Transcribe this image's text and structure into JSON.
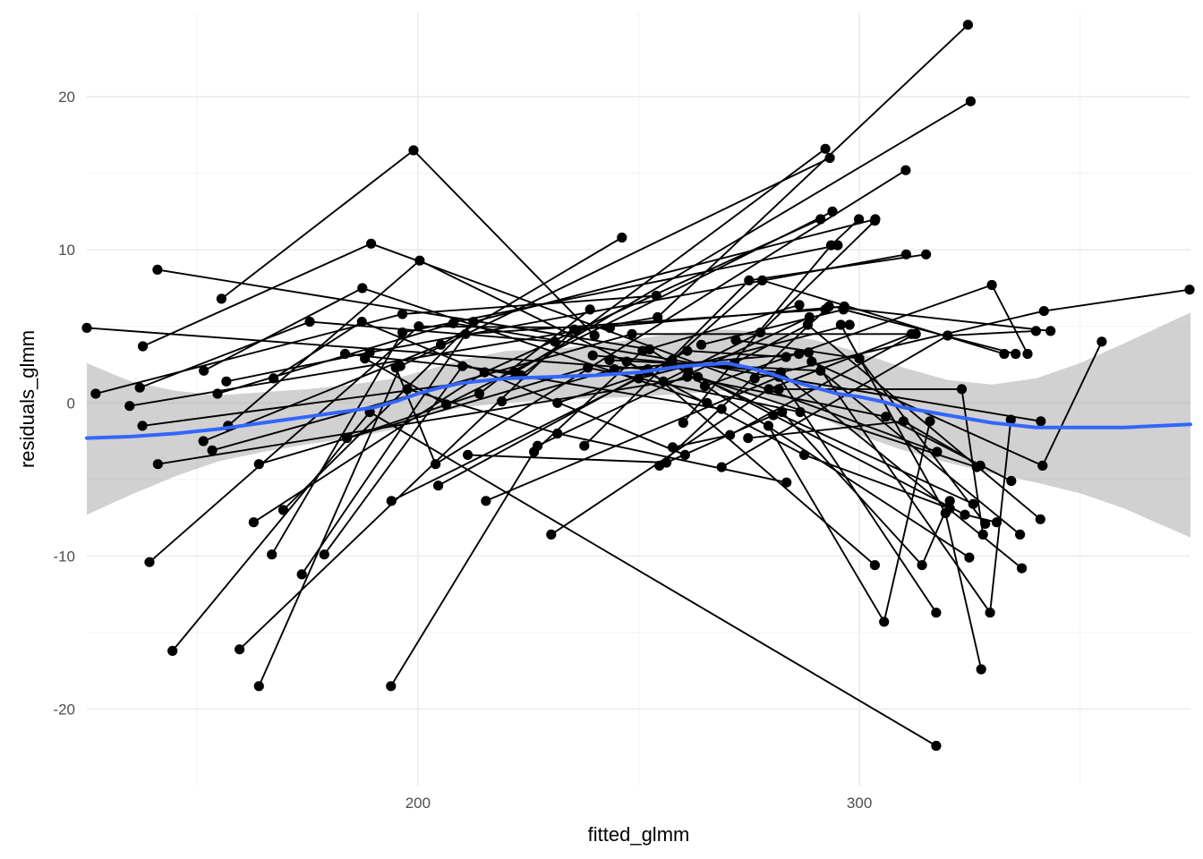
{
  "chart_data": {
    "type": "scatter",
    "xlabel": "fitted_glmm",
    "ylabel": "residuals_glmm",
    "xlim": [
      125,
      375
    ],
    "ylim": [
      -25,
      25.5
    ],
    "x_ticks": [
      {
        "value": 200,
        "label": "200"
      },
      {
        "value": 300,
        "label": "300"
      }
    ],
    "y_ticks": [
      {
        "value": -20,
        "label": "-20"
      },
      {
        "value": -10,
        "label": "-10"
      },
      {
        "value": 0,
        "label": "0"
      },
      {
        "value": 10,
        "label": "10"
      },
      {
        "value": 20,
        "label": "20"
      }
    ],
    "minor_x": [
      150,
      250,
      350
    ],
    "minor_y": [
      -15,
      -5,
      5,
      15
    ],
    "grid": true,
    "legend": "none",
    "colors": {
      "points": "#000000",
      "smooth_line": "#3366FF",
      "ribbon": "#999999"
    },
    "subjects": [
      [
        [
          125.0,
          4.9
        ],
        [
          252.1,
          2.2
        ],
        [
          303.5,
          -10.6
        ]
      ],
      [
        [
          141.0,
          8.7
        ],
        [
          252.5,
          3.5
        ],
        [
          324.9,
          -10.1
        ]
      ],
      [
        [
          155.5,
          6.8
        ],
        [
          199.0,
          16.5
        ],
        [
          240.0,
          4.4
        ]
      ],
      [
        [
          137.7,
          3.7
        ],
        [
          189.4,
          10.4
        ],
        [
          317.6,
          -3.2
        ]
      ],
      [
        [
          127.0,
          0.6
        ],
        [
          196.5,
          5.8
        ],
        [
          254.0,
          7.0
        ]
      ],
      [
        [
          134.7,
          -0.2
        ],
        [
          254.3,
          5.6
        ],
        [
          324.6,
          24.7
        ]
      ],
      [
        [
          137.0,
          1.0
        ],
        [
          175.5,
          5.3
        ],
        [
          231.0,
          4.0
        ]
      ],
      [
        [
          137.6,
          -1.5
        ],
        [
          223.4,
          1.8
        ],
        [
          292.3,
          16.6
        ]
      ],
      [
        [
          141.1,
          -4.0
        ],
        [
          263.4,
          1.7
        ],
        [
          326.6,
          -4.2
        ]
      ],
      [
        [
          139.2,
          -10.4
        ],
        [
          200.2,
          5.0
        ],
        [
          243.5,
          4.9
        ]
      ],
      [
        [
          144.4,
          -16.2
        ],
        [
          189.1,
          -0.6
        ],
        [
          317.4,
          -22.4
        ]
      ],
      [
        [
          151.5,
          2.1
        ],
        [
          187.4,
          7.5
        ],
        [
          265.5,
          0.0
        ]
      ],
      [
        [
          154.6,
          0.6
        ],
        [
          208.0,
          5.2
        ],
        [
          341.1,
          -1.2
        ]
      ],
      [
        [
          156.6,
          1.4
        ],
        [
          189.1,
          3.3
        ],
        [
          310.6,
          9.7
        ]
      ],
      [
        [
          151.4,
          -2.5
        ],
        [
          205.2,
          3.8
        ],
        [
          246.2,
          10.8
        ]
      ],
      [
        [
          153.4,
          -3.1
        ],
        [
          248.5,
          4.5
        ],
        [
          312.8,
          4.5
        ]
      ],
      [
        [
          157.0,
          -1.5
        ],
        [
          200.4,
          9.3
        ],
        [
          252.0,
          2.0
        ]
      ],
      [
        [
          162.8,
          -7.8
        ],
        [
          215.1,
          2.0
        ],
        [
          291.2,
          12.0
        ]
      ],
      [
        [
          164.0,
          -4.0
        ],
        [
          238.5,
          2.3
        ],
        [
          286.6,
          -0.6
        ]
      ],
      [
        [
          167.3,
          1.6
        ],
        [
          187.3,
          5.3
        ],
        [
          260.5,
          -3.4
        ]
      ],
      [
        [
          159.6,
          -16.1
        ],
        [
          235.4,
          4.8
        ],
        [
          296.6,
          6.3
        ]
      ],
      [
        [
          164.0,
          -18.5
        ],
        [
          196.0,
          2.4
        ],
        [
          293.3,
          16.0
        ]
      ],
      [
        [
          169.5,
          -7.0
        ],
        [
          212.6,
          5.3
        ],
        [
          303.6,
          12.0
        ]
      ],
      [
        [
          166.9,
          -9.9
        ],
        [
          196.5,
          4.6
        ],
        [
          295.1,
          10.3
        ]
      ],
      [
        [
          173.7,
          -11.2
        ],
        [
          210.8,
          4.5
        ],
        [
          292.3,
          6.1
        ]
      ],
      [
        [
          178.8,
          -9.9
        ],
        [
          210.1,
          2.4
        ],
        [
          268.8,
          -0.4
        ]
      ],
      [
        [
          183.9,
          -2.3
        ],
        [
          213.9,
          0.6
        ],
        [
          239.0,
          6.1
        ]
      ],
      [
        [
          193.9,
          -18.5
        ],
        [
          227.1,
          -2.8
        ],
        [
          288.7,
          5.6
        ]
      ],
      [
        [
          188.0,
          2.9
        ],
        [
          206.4,
          -0.1
        ],
        [
          293.9,
          12.5
        ]
      ],
      [
        [
          195.0,
          2.3
        ],
        [
          204.0,
          -4.0
        ],
        [
          310.5,
          15.2
        ]
      ],
      [
        [
          183.5,
          3.2
        ],
        [
          222.0,
          2.0
        ],
        [
          325.2,
          19.7
        ]
      ],
      [
        [
          194.0,
          -6.4
        ],
        [
          250.0,
          1.6
        ],
        [
          297.8,
          5.1
        ]
      ],
      [
        [
          197.6,
          0.9
        ],
        [
          231.6,
          -2.0
        ],
        [
          283.5,
          -5.2
        ]
      ],
      [
        [
          204.6,
          -5.4
        ],
        [
          261.0,
          3.4
        ],
        [
          283.4,
          3.0
        ]
      ],
      [
        [
          211.3,
          -3.4
        ],
        [
          256.3,
          -3.9
        ],
        [
          280.5,
          -0.8
        ]
      ],
      [
        [
          215.4,
          -6.4
        ],
        [
          281.8,
          1.7
        ],
        [
          317.4,
          -13.7
        ]
      ],
      [
        [
          219.0,
          0.1
        ],
        [
          244.5,
          2.2
        ],
        [
          286.3,
          3.2
        ]
      ],
      [
        [
          226.3,
          -3.2
        ],
        [
          250.9,
          3.4
        ],
        [
          286.4,
          6.4
        ]
      ],
      [
        [
          230.2,
          -8.6
        ],
        [
          279.5,
          0.9
        ],
        [
          311.8,
          4.5
        ]
      ],
      [
        [
          231.6,
          0.0
        ],
        [
          257.6,
          2.5
        ],
        [
          325.8,
          -6.6
        ]
      ],
      [
        [
          239.6,
          3.1
        ],
        [
          282.2,
          2.0
        ],
        [
          336.8,
          -10.8
        ]
      ],
      [
        [
          237.7,
          -2.8
        ],
        [
          275.0,
          8.0
        ],
        [
          315.1,
          9.7
        ]
      ],
      [
        [
          247.3,
          2.7
        ],
        [
          287.5,
          -3.4
        ],
        [
          320.5,
          -6.9
        ]
      ],
      [
        [
          254.7,
          -4.1
        ],
        [
          293.1,
          6.3
        ],
        [
          343.3,
          4.7
        ]
      ],
      [
        [
          257.7,
          -2.9
        ],
        [
          270.7,
          -2.1
        ],
        [
          312.6,
          4.5
        ]
      ],
      [
        [
          268.8,
          -4.2
        ],
        [
          320.0,
          4.4
        ],
        [
          340.0,
          4.7
        ]
      ],
      [
        [
          257.6,
          2.8
        ],
        [
          278.0,
          8.0
        ],
        [
          332.8,
          3.2
        ]
      ],
      [
        [
          264.2,
          3.8
        ],
        [
          296.4,
          6.1
        ],
        [
          335.4,
          3.2
        ]
      ],
      [
        [
          260.1,
          -1.3
        ],
        [
          293.6,
          10.3
        ],
        [
          299.9,
          12.0
        ]
      ],
      [
        [
          255.6,
          1.4
        ],
        [
          277.6,
          4.6
        ],
        [
          303.5,
          11.9
        ]
      ],
      [
        [
          272.0,
          4.1
        ],
        [
          300.0,
          2.9
        ],
        [
          328.5,
          -7.9
        ]
      ],
      [
        [
          271.7,
          2.6
        ],
        [
          288.3,
          5.1
        ],
        [
          341.0,
          -7.6
        ]
      ],
      [
        [
          261.0,
          1.7
        ],
        [
          306.0,
          -0.9
        ],
        [
          334.4,
          -5.1
        ]
      ],
      [
        [
          281.8,
          0.9
        ],
        [
          323.2,
          0.9
        ],
        [
          328.0,
          -8.6
        ]
      ],
      [
        [
          282.5,
          -0.6
        ],
        [
          314.2,
          -10.6
        ],
        [
          320.5,
          -6.4
        ]
      ],
      [
        [
          274.8,
          -2.3
        ],
        [
          310.0,
          -1.2
        ],
        [
          327.4,
          -4.1
        ]
      ],
      [
        [
          288.5,
          3.3
        ],
        [
          329.6,
          -13.7
        ],
        [
          334.3,
          -1.1
        ]
      ],
      [
        [
          289.2,
          2.7
        ],
        [
          341.5,
          -4.1
        ],
        [
          354.9,
          4.0
        ]
      ],
      [
        [
          295.8,
          5.1
        ],
        [
          319.5,
          -7.2
        ],
        [
          327.6,
          -17.4
        ]
      ],
      [
        [
          279.4,
          -1.5
        ],
        [
          305.6,
          -14.3
        ],
        [
          316.0,
          -1.2
        ]
      ],
      [
        [
          265.0,
          1.1
        ],
        [
          330.0,
          7.7
        ],
        [
          338.1,
          3.2
        ]
      ],
      [
        [
          261.2,
          2.1
        ],
        [
          323.9,
          -7.3
        ],
        [
          331.1,
          -7.8
        ]
      ],
      [
        [
          276.3,
          1.6
        ],
        [
          341.8,
          6.0
        ],
        [
          374.8,
          7.4
        ]
      ],
      [
        [
          243.4,
          2.8
        ],
        [
          291.2,
          2.1
        ],
        [
          336.4,
          -8.6
        ]
      ]
    ],
    "smooth_line": {
      "x": [
        125,
        135,
        145,
        155,
        165,
        175,
        185,
        190,
        195,
        200,
        205,
        210,
        220,
        230,
        240,
        250,
        255,
        260,
        265,
        270,
        275,
        280,
        285,
        290,
        295,
        300,
        305,
        310,
        320,
        330,
        340,
        350,
        360,
        375
      ],
      "y": [
        -2.3,
        -2.2,
        -2.0,
        -1.7,
        -1.3,
        -0.9,
        -0.5,
        -0.3,
        0.1,
        0.6,
        1.0,
        1.3,
        1.6,
        1.7,
        1.8,
        2.0,
        2.2,
        2.4,
        2.5,
        2.6,
        2.3,
        1.9,
        1.4,
        1.0,
        0.6,
        0.4,
        0.1,
        -0.3,
        -0.8,
        -1.3,
        -1.6,
        -1.6,
        -1.6,
        -1.4
      ]
    },
    "ribbon": {
      "x": [
        125,
        135,
        145,
        155,
        165,
        175,
        185,
        195,
        200,
        210,
        220,
        230,
        240,
        250,
        260,
        270,
        280,
        290,
        300,
        310,
        320,
        330,
        340,
        350,
        360,
        375
      ],
      "upper": [
        2.6,
        1.4,
        0.8,
        0.5,
        0.7,
        0.9,
        1.2,
        1.6,
        2.0,
        2.8,
        3.4,
        3.5,
        3.8,
        4.2,
        4.6,
        4.8,
        4.6,
        4.1,
        3.3,
        2.3,
        1.5,
        1.2,
        1.6,
        2.6,
        3.9,
        5.9
      ],
      "lower": [
        -7.3,
        -6.0,
        -4.8,
        -3.8,
        -3.2,
        -2.7,
        -2.3,
        -1.7,
        -0.9,
        -0.3,
        0.0,
        0.2,
        0.3,
        0.4,
        0.6,
        0.8,
        0.2,
        -0.8,
        -2.1,
        -3.1,
        -3.9,
        -4.6,
        -5.2,
        -5.9,
        -6.9,
        -8.8
      ]
    }
  }
}
